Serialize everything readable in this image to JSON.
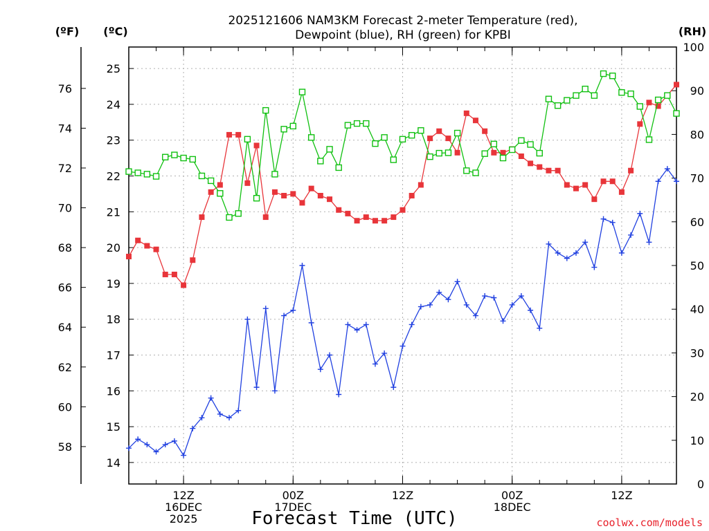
{
  "chart_data": {
    "type": "line",
    "title_line1": "2025121606 NAM3KM Forecast 2-meter Temperature (red),",
    "title_line2": "Dewpoint (blue), RH (green) for KPBI",
    "xlabel": "Forecast Time (UTC)",
    "credit": "coolwx.com/models",
    "units": {
      "f": "(ºF)",
      "c": "(ºC)",
      "rh": "(RH)"
    },
    "x_range_hours": [
      6,
      66
    ],
    "x_ticks": [
      {
        "hour": 12,
        "lines": [
          "12Z",
          "16DEC",
          "2025"
        ]
      },
      {
        "hour": 24,
        "lines": [
          "00Z",
          "17DEC"
        ]
      },
      {
        "hour": 36,
        "lines": [
          "12Z"
        ]
      },
      {
        "hour": 48,
        "lines": [
          "00Z",
          "18DEC"
        ]
      },
      {
        "hour": 60,
        "lines": [
          "12Z"
        ]
      }
    ],
    "x_minor_step_hours": 3,
    "y_left_c": {
      "min": 13.4,
      "max": 25.6,
      "ticks": [
        14,
        15,
        16,
        17,
        18,
        19,
        20,
        21,
        22,
        23,
        24,
        25
      ]
    },
    "y_left_f": {
      "ticks": [
        58,
        60,
        62,
        64,
        66,
        68,
        70,
        72,
        74,
        76
      ]
    },
    "y_right_rh": {
      "min": 0,
      "max": 100,
      "ticks": [
        0,
        10,
        20,
        30,
        40,
        50,
        60,
        70,
        80,
        90,
        100
      ]
    },
    "grid": true,
    "colors": {
      "temperature": "#e8353a",
      "dewpoint": "#2040e0",
      "rh": "#10c010"
    },
    "series": [
      {
        "name": "Temperature",
        "axis": "c",
        "marker": "filled-square",
        "points": [
          [
            6,
            19.75
          ],
          [
            7,
            20.2
          ],
          [
            8,
            20.05
          ],
          [
            9,
            19.95
          ],
          [
            10,
            19.25
          ],
          [
            11,
            19.25
          ],
          [
            12,
            18.95
          ],
          [
            13,
            19.65
          ],
          [
            14,
            20.85
          ],
          [
            15,
            21.55
          ],
          [
            16,
            21.75
          ],
          [
            17,
            23.15
          ],
          [
            18,
            23.15
          ],
          [
            19,
            21.8
          ],
          [
            20,
            22.85
          ],
          [
            21,
            20.85
          ],
          [
            22,
            21.55
          ],
          [
            23,
            21.45
          ],
          [
            24,
            21.5
          ],
          [
            25,
            21.25
          ],
          [
            26,
            21.65
          ],
          [
            27,
            21.45
          ],
          [
            28,
            21.35
          ],
          [
            29,
            21.05
          ],
          [
            30,
            20.95
          ],
          [
            31,
            20.75
          ],
          [
            32,
            20.85
          ],
          [
            33,
            20.75
          ],
          [
            34,
            20.75
          ],
          [
            35,
            20.85
          ],
          [
            36,
            21.05
          ],
          [
            37,
            21.45
          ],
          [
            38,
            21.75
          ],
          [
            39,
            23.05
          ],
          [
            40,
            23.25
          ],
          [
            41,
            23.05
          ],
          [
            42,
            22.65
          ],
          [
            43,
            23.75
          ],
          [
            44,
            23.55
          ],
          [
            45,
            23.25
          ],
          [
            46,
            22.65
          ],
          [
            47,
            22.65
          ],
          [
            48,
            22.75
          ],
          [
            49,
            22.55
          ],
          [
            50,
            22.35
          ],
          [
            51,
            22.25
          ],
          [
            52,
            22.15
          ],
          [
            53,
            22.15
          ],
          [
            54,
            21.75
          ],
          [
            55,
            21.65
          ],
          [
            56,
            21.75
          ],
          [
            57,
            21.35
          ],
          [
            58,
            21.85
          ],
          [
            59,
            21.85
          ],
          [
            60,
            21.55
          ],
          [
            61,
            22.15
          ],
          [
            62,
            23.45
          ],
          [
            63,
            24.05
          ],
          [
            64,
            23.95
          ],
          [
            65,
            24.25
          ],
          [
            66,
            24.55
          ]
        ]
      },
      {
        "name": "Dewpoint",
        "axis": "c",
        "marker": "plus",
        "points": [
          [
            6,
            14.4
          ],
          [
            7,
            14.65
          ],
          [
            8,
            14.5
          ],
          [
            9,
            14.3
          ],
          [
            10,
            14.5
          ],
          [
            11,
            14.6
          ],
          [
            12,
            14.2
          ],
          [
            13,
            14.95
          ],
          [
            14,
            15.25
          ],
          [
            15,
            15.8
          ],
          [
            16,
            15.35
          ],
          [
            17,
            15.25
          ],
          [
            18,
            15.45
          ],
          [
            19,
            18.0
          ],
          [
            20,
            16.1
          ],
          [
            21,
            18.3
          ],
          [
            22,
            16.0
          ],
          [
            23,
            18.1
          ],
          [
            24,
            18.25
          ],
          [
            25,
            19.5
          ],
          [
            26,
            17.9
          ],
          [
            27,
            16.6
          ],
          [
            28,
            17.0
          ],
          [
            29,
            15.9
          ],
          [
            30,
            17.85
          ],
          [
            31,
            17.7
          ],
          [
            32,
            17.85
          ],
          [
            33,
            16.75
          ],
          [
            34,
            17.05
          ],
          [
            35,
            16.1
          ],
          [
            36,
            17.25
          ],
          [
            37,
            17.85
          ],
          [
            38,
            18.35
          ],
          [
            39,
            18.4
          ],
          [
            40,
            18.75
          ],
          [
            41,
            18.55
          ],
          [
            42,
            19.05
          ],
          [
            43,
            18.4
          ],
          [
            44,
            18.1
          ],
          [
            45,
            18.65
          ],
          [
            46,
            18.6
          ],
          [
            47,
            17.95
          ],
          [
            48,
            18.4
          ],
          [
            49,
            18.65
          ],
          [
            50,
            18.25
          ],
          [
            51,
            17.75
          ],
          [
            52,
            20.1
          ],
          [
            53,
            19.85
          ],
          [
            54,
            19.7
          ],
          [
            55,
            19.85
          ],
          [
            56,
            20.15
          ],
          [
            57,
            19.45
          ],
          [
            58,
            20.8
          ],
          [
            59,
            20.7
          ],
          [
            60,
            19.85
          ],
          [
            61,
            20.35
          ],
          [
            62,
            20.95
          ],
          [
            63,
            20.15
          ],
          [
            64,
            21.85
          ],
          [
            65,
            22.2
          ],
          [
            66,
            21.85
          ]
        ]
      },
      {
        "name": "RH",
        "axis": "rh",
        "marker": "open-square",
        "points": [
          [
            6,
            71.5
          ],
          [
            7,
            71.2
          ],
          [
            8,
            70.9
          ],
          [
            9,
            70.4
          ],
          [
            10,
            74.8
          ],
          [
            11,
            75.3
          ],
          [
            12,
            74.6
          ],
          [
            13,
            74.3
          ],
          [
            14,
            70.5
          ],
          [
            15,
            69.4
          ],
          [
            16,
            66.5
          ],
          [
            17,
            61.0
          ],
          [
            18,
            61.9
          ],
          [
            19,
            78.9
          ],
          [
            20,
            65.4
          ],
          [
            21,
            85.5
          ],
          [
            22,
            70.9
          ],
          [
            23,
            81.2
          ],
          [
            24,
            81.9
          ],
          [
            25,
            89.7
          ],
          [
            26,
            79.3
          ],
          [
            27,
            73.9
          ],
          [
            28,
            76.6
          ],
          [
            29,
            72.4
          ],
          [
            30,
            82.1
          ],
          [
            31,
            82.5
          ],
          [
            32,
            82.5
          ],
          [
            33,
            77.9
          ],
          [
            34,
            79.3
          ],
          [
            35,
            74.2
          ],
          [
            36,
            78.9
          ],
          [
            37,
            79.8
          ],
          [
            38,
            80.9
          ],
          [
            39,
            74.9
          ],
          [
            40,
            75.7
          ],
          [
            41,
            75.8
          ],
          [
            42,
            80.3
          ],
          [
            43,
            71.7
          ],
          [
            44,
            71.2
          ],
          [
            45,
            75.6
          ],
          [
            46,
            77.8
          ],
          [
            47,
            74.6
          ],
          [
            48,
            76.5
          ],
          [
            49,
            78.6
          ],
          [
            50,
            77.7
          ],
          [
            51,
            75.7
          ],
          [
            52,
            88.1
          ],
          [
            53,
            86.6
          ],
          [
            54,
            87.8
          ],
          [
            55,
            88.9
          ],
          [
            56,
            90.4
          ],
          [
            57,
            88.9
          ],
          [
            58,
            93.9
          ],
          [
            59,
            93.4
          ],
          [
            60,
            89.6
          ],
          [
            61,
            89.3
          ],
          [
            62,
            86.4
          ],
          [
            63,
            78.8
          ],
          [
            64,
            87.9
          ],
          [
            65,
            88.9
          ],
          [
            66,
            84.8
          ]
        ]
      }
    ]
  }
}
